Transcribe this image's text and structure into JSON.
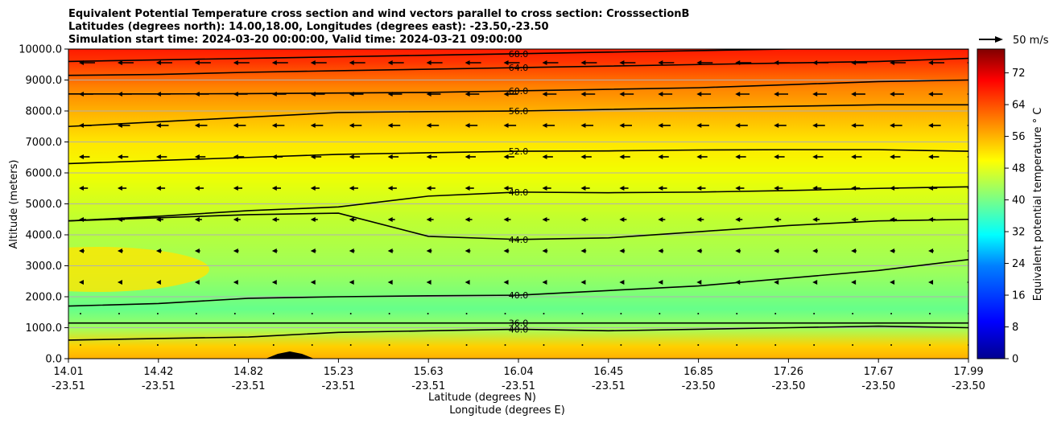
{
  "chart_data": {
    "type": "heatmap",
    "title": [
      "Equivalent Potential Temperature cross section and wind vectors parallel to cross section: CrosssectionB",
      "Latitudes (degrees north): 14.00,18.00, Longitudes (degrees east): -23.50,-23.50",
      "Simulation start time: 2024-03-20 00:00:00, Valid time: 2024-03-21 09:00:00"
    ],
    "ylabel": "Altitude (meters)",
    "xlabel": "Latitude (degrees N)",
    "xlabel2": "Longitude (degrees E)",
    "ylim": [
      0,
      10000
    ],
    "y_ticks": [
      "0.0",
      "1000.0",
      "2000.0",
      "3000.0",
      "4000.0",
      "5000.0",
      "6000.0",
      "7000.0",
      "8000.0",
      "9000.0",
      "10000.0"
    ],
    "x_ticks": [
      {
        "lat": "14.01",
        "lon": "-23.51"
      },
      {
        "lat": "14.42",
        "lon": "-23.51"
      },
      {
        "lat": "14.82",
        "lon": "-23.51"
      },
      {
        "lat": "15.23",
        "lon": "-23.51"
      },
      {
        "lat": "15.63",
        "lon": "-23.51"
      },
      {
        "lat": "16.04",
        "lon": "-23.51"
      },
      {
        "lat": "16.45",
        "lon": "-23.51"
      },
      {
        "lat": "16.85",
        "lon": "-23.50"
      },
      {
        "lat": "17.26",
        "lon": "-23.50"
      },
      {
        "lat": "17.67",
        "lon": "-23.50"
      },
      {
        "lat": "17.99",
        "lon": "-23.50"
      }
    ],
    "contours": [
      {
        "label": "36.0",
        "altitudes": [
          1150,
          1150,
          1150,
          1150,
          1150,
          1150,
          1150,
          1150,
          1150,
          1150,
          1150
        ]
      },
      {
        "label": "40.0",
        "altitudes": [
          600,
          650,
          700,
          850,
          900,
          950,
          900,
          950,
          1000,
          1050,
          1000
        ]
      },
      {
        "label": "40.0",
        "altitudes": [
          1700,
          1780,
          1950,
          2000,
          2030,
          2050,
          2200,
          2350,
          2600,
          2850,
          3200
        ]
      },
      {
        "label": "44.0",
        "altitudes": [
          4450,
          4550,
          4650,
          4700,
          3950,
          3850,
          3900,
          4100,
          4300,
          4450,
          4500
        ]
      },
      {
        "label": "48.0",
        "altitudes": [
          4450,
          4600,
          4780,
          4900,
          5250,
          5380,
          5360,
          5380,
          5430,
          5500,
          5550
        ]
      },
      {
        "label": "52.0",
        "altitudes": [
          6300,
          6400,
          6500,
          6600,
          6650,
          6700,
          6710,
          6740,
          6750,
          6750,
          6700
        ]
      },
      {
        "label": "56.0",
        "altitudes": [
          7500,
          7650,
          7800,
          7950,
          7980,
          8000,
          8050,
          8100,
          8150,
          8200,
          8200
        ]
      },
      {
        "label": "60.0",
        "altitudes": [
          8550,
          8550,
          8560,
          8580,
          8600,
          8650,
          8700,
          8750,
          8850,
          8950,
          9000
        ]
      },
      {
        "label": "64.0",
        "altitudes": [
          9150,
          9180,
          9250,
          9300,
          9350,
          9400,
          9450,
          9500,
          9550,
          9600,
          9700
        ]
      },
      {
        "label": "68.0",
        "altitudes": [
          9600,
          9650,
          9700,
          9750,
          9800,
          9850,
          9900,
          9950,
          10000,
          10000,
          10000
        ]
      }
    ],
    "wind_reference": {
      "label": "50 m/s"
    },
    "colorbar": {
      "label": "Equivalent potential temperature  ° C",
      "range": [
        0,
        78
      ],
      "ticks": [
        "0",
        "8",
        "16",
        "24",
        "32",
        "40",
        "48",
        "56",
        "64",
        "72"
      ],
      "colors": [
        "#00008f",
        "#0000ff",
        "#0080ff",
        "#00ffff",
        "#80ff80",
        "#ffff00",
        "#ff8000",
        "#ff0000",
        "#800000"
      ]
    }
  }
}
